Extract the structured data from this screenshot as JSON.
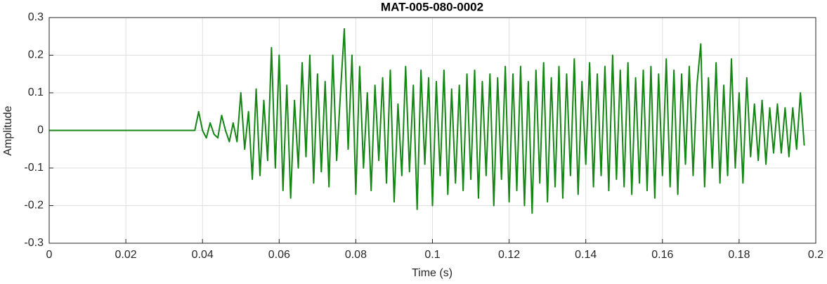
{
  "chart_data": {
    "type": "line",
    "title": "MAT-005-080-0002",
    "xlabel": "Time (s)",
    "ylabel": "Amplitude",
    "xlim": [
      0,
      0.2
    ],
    "ylim": [
      -0.3,
      0.3
    ],
    "xticks": [
      0,
      0.02,
      0.04,
      0.06,
      0.08,
      0.1,
      0.12,
      0.14,
      0.16,
      0.18,
      0.2
    ],
    "yticks": [
      -0.3,
      -0.2,
      -0.1,
      0,
      0.1,
      0.2,
      0.3
    ],
    "grid": true,
    "x": [
      0,
      0.01,
      0.02,
      0.03,
      0.038,
      0.039,
      0.04,
      0.041,
      0.042,
      0.043,
      0.044,
      0.045,
      0.046,
      0.047,
      0.048,
      0.049,
      0.05,
      0.051,
      0.052,
      0.053,
      0.054,
      0.055,
      0.056,
      0.057,
      0.058,
      0.059,
      0.06,
      0.061,
      0.062,
      0.063,
      0.064,
      0.065,
      0.066,
      0.067,
      0.068,
      0.069,
      0.07,
      0.071,
      0.072,
      0.073,
      0.074,
      0.075,
      0.076,
      0.077,
      0.078,
      0.079,
      0.08,
      0.081,
      0.082,
      0.083,
      0.084,
      0.085,
      0.086,
      0.087,
      0.088,
      0.089,
      0.09,
      0.091,
      0.092,
      0.093,
      0.094,
      0.095,
      0.096,
      0.097,
      0.098,
      0.099,
      0.1,
      0.101,
      0.102,
      0.103,
      0.104,
      0.105,
      0.106,
      0.107,
      0.108,
      0.109,
      0.11,
      0.111,
      0.112,
      0.113,
      0.114,
      0.115,
      0.116,
      0.117,
      0.118,
      0.119,
      0.12,
      0.121,
      0.122,
      0.123,
      0.124,
      0.125,
      0.126,
      0.127,
      0.128,
      0.129,
      0.13,
      0.131,
      0.132,
      0.133,
      0.134,
      0.135,
      0.136,
      0.137,
      0.138,
      0.139,
      0.14,
      0.141,
      0.142,
      0.143,
      0.144,
      0.145,
      0.146,
      0.147,
      0.148,
      0.149,
      0.15,
      0.151,
      0.152,
      0.153,
      0.154,
      0.155,
      0.156,
      0.157,
      0.158,
      0.159,
      0.16,
      0.161,
      0.162,
      0.163,
      0.164,
      0.165,
      0.166,
      0.167,
      0.168,
      0.169,
      0.17,
      0.171,
      0.172,
      0.173,
      0.174,
      0.175,
      0.176,
      0.177,
      0.178,
      0.179,
      0.18,
      0.181,
      0.182,
      0.183,
      0.184,
      0.185,
      0.186,
      0.187,
      0.188,
      0.189,
      0.19,
      0.191,
      0.192,
      0.193,
      0.194,
      0.195,
      0.196,
      0.197
    ],
    "series": [
      {
        "color": "#138613",
        "values": [
          0,
          0,
          0,
          0,
          0,
          0.05,
          0,
          -0.02,
          0.02,
          -0.01,
          -0.02,
          0.04,
          0,
          -0.03,
          0.02,
          -0.03,
          0.1,
          -0.05,
          0.05,
          -0.13,
          0.11,
          -0.12,
          0.08,
          -0.08,
          0.22,
          -0.1,
          0.2,
          -0.16,
          0.12,
          -0.18,
          0.08,
          -0.1,
          0.18,
          -0.07,
          0.2,
          -0.14,
          0.15,
          -0.11,
          0.13,
          -0.15,
          0.2,
          -0.08,
          0.1,
          0.27,
          -0.05,
          0.2,
          -0.17,
          0.17,
          -0.1,
          0.1,
          -0.16,
          0.12,
          -0.08,
          0.14,
          -0.14,
          0.16,
          -0.19,
          0.07,
          -0.12,
          0.17,
          -0.11,
          0.12,
          -0.21,
          0.16,
          -0.09,
          0.14,
          -0.2,
          0.13,
          -0.12,
          0.16,
          -0.17,
          0.11,
          -0.14,
          0.12,
          -0.16,
          0.15,
          -0.13,
          0.16,
          -0.18,
          0.13,
          -0.12,
          0.15,
          -0.2,
          0.14,
          -0.13,
          0.17,
          -0.19,
          0.15,
          -0.16,
          0.17,
          -0.2,
          0.13,
          -0.22,
          0.16,
          -0.14,
          0.18,
          -0.19,
          0.14,
          -0.15,
          0.17,
          -0.18,
          0.15,
          -0.12,
          0.19,
          -0.17,
          0.13,
          -0.09,
          0.18,
          -0.15,
          0.15,
          -0.12,
          0.17,
          -0.16,
          0.2,
          -0.13,
          0.16,
          -0.15,
          0.18,
          -0.17,
          0.14,
          -0.14,
          0.16,
          -0.16,
          0.17,
          -0.18,
          0.15,
          -0.12,
          0.19,
          -0.15,
          0.16,
          -0.17,
          0.15,
          -0.09,
          0.17,
          -0.12,
          0.12,
          0.23,
          -0.15,
          0.14,
          -0.1,
          0.18,
          -0.14,
          0.12,
          -0.12,
          0.19,
          -0.1,
          0.1,
          -0.14,
          0.14,
          -0.07,
          0.07,
          -0.08,
          0.08,
          -0.09,
          0.06,
          -0.06,
          0.07,
          -0.06,
          0.06,
          -0.07,
          0.06,
          -0.05,
          0.1,
          -0.04
        ]
      }
    ]
  }
}
